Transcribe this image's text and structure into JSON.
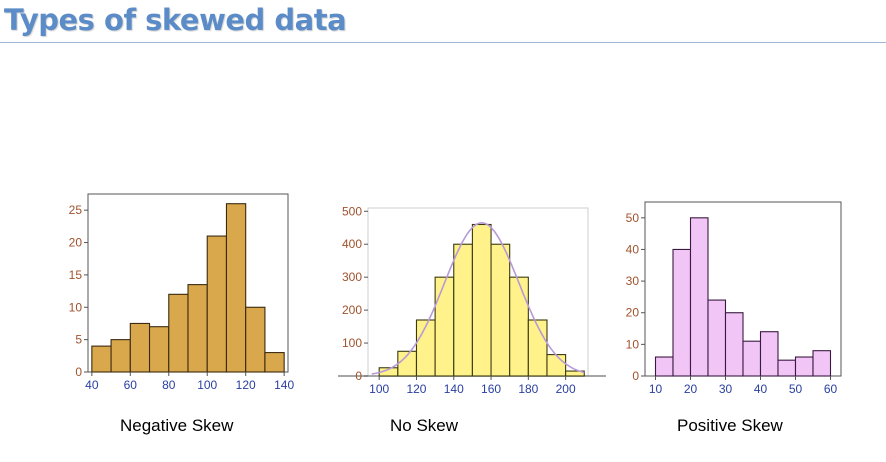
{
  "slide": {
    "title": "Types of skewed data"
  },
  "captions": {
    "negative": "Negative Skew",
    "none": "No Skew",
    "positive": "Positive Skew"
  },
  "colors": {
    "title": "#5b8cc8",
    "negative_fill": "#d9a84c",
    "normal_fill": "#fff28a",
    "positive_fill": "#f1c6f7",
    "normal_curve": "#b79ad6",
    "y_tick_label": "#a0522d",
    "x_tick_label": "#2a3fa0"
  },
  "chart_data": [
    {
      "type": "bar",
      "title": "",
      "xlabel": "",
      "ylabel": "",
      "x_ticks": [
        40,
        60,
        80,
        100,
        120,
        140
      ],
      "y_ticks": [
        0,
        5,
        10,
        15,
        20,
        25
      ],
      "xlim": [
        38,
        142
      ],
      "ylim": [
        0,
        27.5
      ],
      "bin_edges": [
        40,
        50,
        60,
        70,
        80,
        90,
        100,
        110,
        120,
        130,
        140
      ],
      "values": [
        4,
        5,
        7.5,
        7,
        12,
        13.5,
        21,
        26,
        10,
        3
      ],
      "caption": "Negative Skew"
    },
    {
      "type": "bar",
      "title": "",
      "xlabel": "",
      "ylabel": "",
      "x_ticks": [
        100,
        120,
        140,
        160,
        180,
        200
      ],
      "y_ticks": [
        0,
        100,
        200,
        300,
        400,
        500
      ],
      "xlim": [
        94,
        212
      ],
      "ylim": [
        0,
        510
      ],
      "bin_edges": [
        100,
        110,
        120,
        130,
        140,
        150,
        160,
        170,
        180,
        190,
        200,
        210
      ],
      "values": [
        25,
        75,
        170,
        300,
        400,
        460,
        400,
        300,
        170,
        65,
        15
      ],
      "overlay": "normal curve",
      "caption": "No Skew"
    },
    {
      "type": "bar",
      "title": "",
      "xlabel": "",
      "ylabel": "",
      "x_ticks": [
        10,
        20,
        30,
        40,
        50,
        60
      ],
      "y_ticks": [
        0,
        10,
        20,
        30,
        40,
        50
      ],
      "xlim": [
        7,
        63
      ],
      "ylim": [
        0,
        55
      ],
      "bin_edges": [
        10,
        15,
        20,
        25,
        30,
        35,
        40,
        45,
        50,
        55,
        60
      ],
      "values": [
        6,
        40,
        50,
        24,
        20,
        11,
        14,
        5,
        6,
        8
      ],
      "caption": "Positive Skew"
    }
  ]
}
